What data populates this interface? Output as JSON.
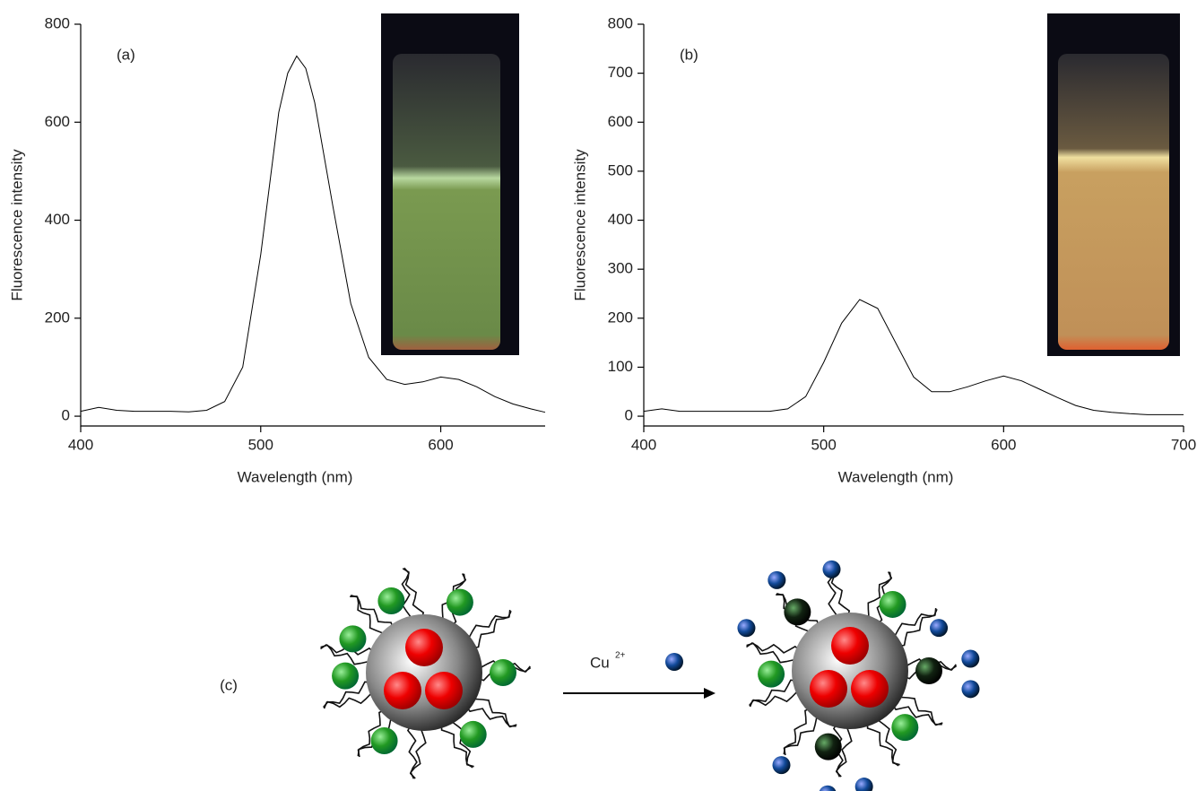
{
  "chart_data": [
    {
      "type": "line",
      "label": "(a)",
      "xlabel": "Wavelength (nm)",
      "ylabel": "Fluorescence intensity",
      "xlim": [
        400,
        658
      ],
      "ylim": [
        -20,
        800
      ],
      "xticks": [
        400,
        500,
        600
      ],
      "yticks": [
        0,
        200,
        400,
        600,
        800
      ],
      "color": "#000000",
      "x": [
        400,
        410,
        420,
        430,
        440,
        450,
        460,
        470,
        480,
        490,
        500,
        510,
        515,
        520,
        525,
        530,
        540,
        550,
        560,
        570,
        580,
        590,
        600,
        610,
        620,
        630,
        640,
        650,
        658
      ],
      "values": [
        10,
        18,
        12,
        10,
        10,
        10,
        9,
        12,
        30,
        100,
        330,
        620,
        700,
        735,
        710,
        640,
        430,
        230,
        120,
        75,
        65,
        70,
        80,
        75,
        60,
        40,
        25,
        15,
        8
      ]
    },
    {
      "type": "line",
      "label": "(b)",
      "xlabel": "Wavelength (nm)",
      "ylabel": "Fluorescence intensity",
      "xlim": [
        400,
        700
      ],
      "ylim": [
        -20,
        800
      ],
      "xticks": [
        400,
        500,
        600,
        700
      ],
      "yticks": [
        0,
        100,
        200,
        300,
        400,
        500,
        600,
        700,
        800
      ],
      "color": "#000000",
      "x": [
        400,
        410,
        420,
        430,
        440,
        450,
        460,
        470,
        480,
        490,
        500,
        510,
        520,
        530,
        540,
        550,
        560,
        570,
        580,
        590,
        600,
        610,
        620,
        630,
        640,
        650,
        660,
        670,
        680,
        690,
        700
      ],
      "values": [
        10,
        15,
        10,
        10,
        10,
        10,
        10,
        10,
        15,
        40,
        110,
        190,
        238,
        220,
        150,
        80,
        50,
        50,
        60,
        72,
        82,
        72,
        55,
        38,
        22,
        12,
        8,
        5,
        3,
        3,
        3
      ]
    }
  ],
  "diagram": {
    "label": "(c)",
    "reagent": "Cu",
    "reagent_charge": "2+"
  }
}
